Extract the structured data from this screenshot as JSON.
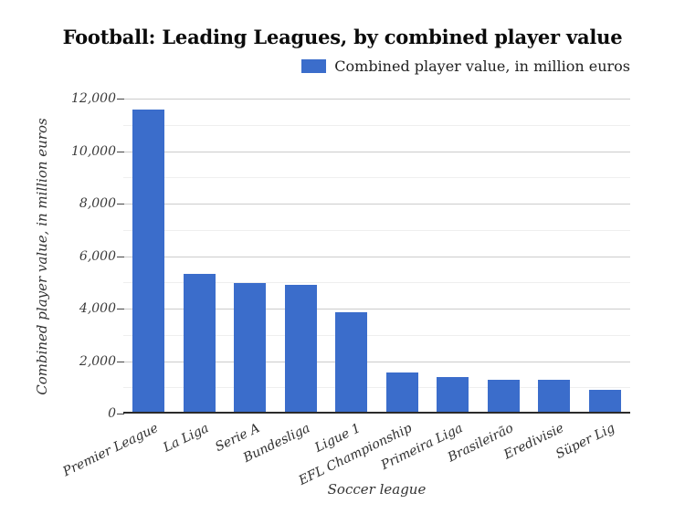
{
  "title": "Football: Leading Leagues, by combined player value",
  "legend": {
    "label": "Combined player value, in million euros",
    "swatch_color": "#3b6dcb"
  },
  "chart_data": {
    "type": "bar",
    "title": "Football: Leading Leagues, by combined player value",
    "categories": [
      "Premier League",
      "La Liga",
      "Serie A",
      "Bundesliga",
      "Ligue 1",
      "EFL Championship",
      "Primeira Liga",
      "Brasileirão",
      "Eredivisie",
      "Süper Lig"
    ],
    "values": [
      11500,
      5250,
      4900,
      4850,
      3800,
      1500,
      1330,
      1200,
      1200,
      850
    ],
    "series_name": "Combined player value, in million euros",
    "xlabel": "Soccer league",
    "ylabel": "Combined player value, in million euros",
    "ylim": [
      0,
      12000
    ],
    "ytick_interval": 2000,
    "minor_gridline_interval": 1000,
    "ytick_labels": [
      "0",
      "2,000",
      "4,000",
      "6,000",
      "8,000",
      "10,000",
      "12,000"
    ],
    "grid": true,
    "legend_position": "top-right",
    "bar_color": "#3b6dcb"
  },
  "colors": {
    "bar": "#3b6dcb",
    "major_grid": "#cccccc",
    "minor_grid": "#efefef",
    "axis_baseline": "#2b2b2b",
    "tick_mark": "#444444",
    "title_text": "#0b0b0b",
    "label_text": "#333333"
  }
}
